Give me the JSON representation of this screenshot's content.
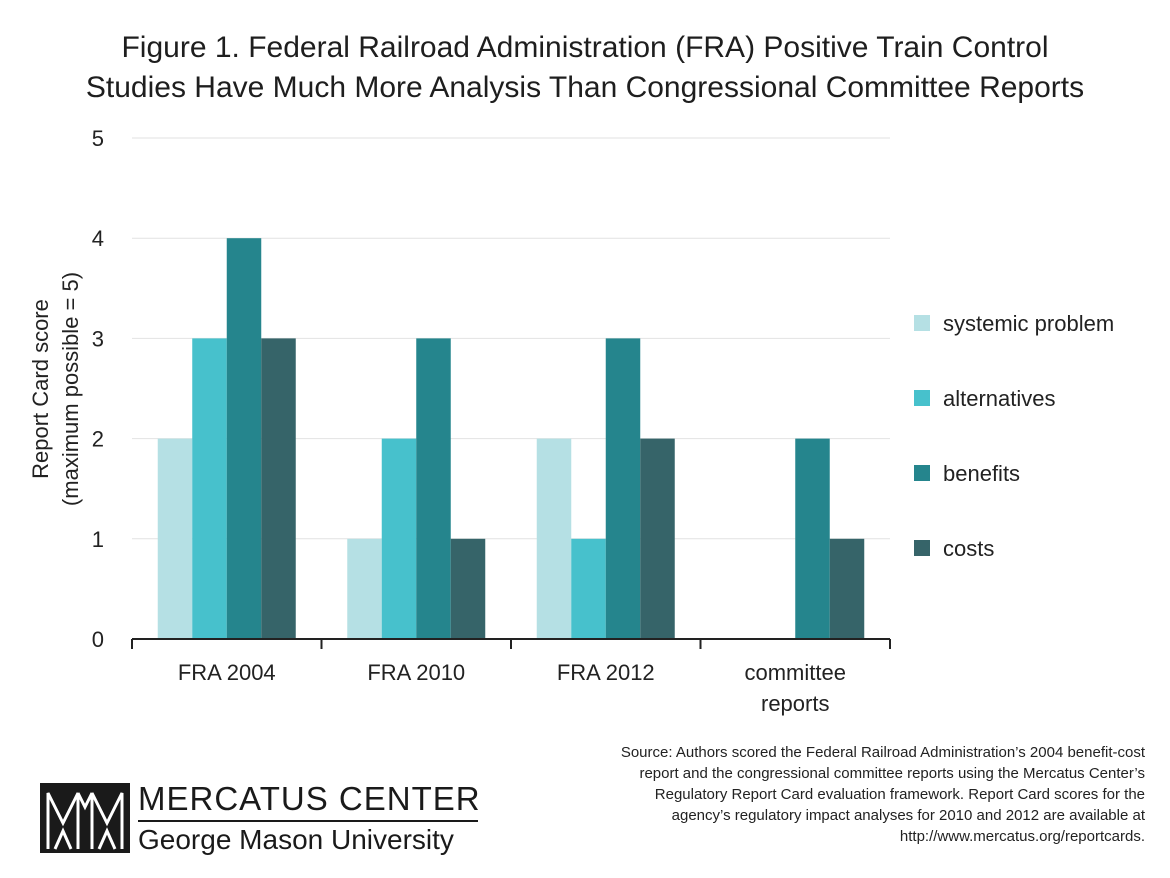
{
  "title": {
    "line1": "Figure 1. Federal Railroad Administration (FRA) Positive Train Control",
    "line2": "Studies Have Much More Analysis Than Congressional Committee Reports"
  },
  "chart_data": {
    "type": "bar",
    "title": "Figure 1. Federal Railroad Administration (FRA) Positive Train Control Studies Have Much More Analysis Than Congressional Committee Reports",
    "ylabel": [
      "Report Card score",
      "(maximum possible = 5)"
    ],
    "xlabel": "",
    "ylim": [
      0,
      5
    ],
    "yticks": [
      "0",
      "1",
      "2",
      "3",
      "4",
      "5"
    ],
    "grid": true,
    "legend_position": "right",
    "categories": [
      [
        "FRA 2004"
      ],
      [
        "FRA 2010"
      ],
      [
        "FRA 2012"
      ],
      [
        "committee",
        "reports"
      ]
    ],
    "series": [
      {
        "name": "systemic problem",
        "color": "#b5e0e4",
        "values": [
          2,
          1,
          2,
          0
        ]
      },
      {
        "name": "alternatives",
        "color": "#47c1cc",
        "values": [
          3,
          2,
          1,
          0
        ]
      },
      {
        "name": "benefits",
        "color": "#25858d",
        "values": [
          4,
          3,
          3,
          2
        ]
      },
      {
        "name": "costs",
        "color": "#366469",
        "values": [
          3,
          1,
          2,
          1
        ]
      }
    ]
  },
  "source": {
    "lines": [
      "Source: Authors scored the Federal Railroad Administration’s 2004 benefit-cost",
      "report and the congressional committee reports using the Mercatus Center’s",
      "Regulatory Report Card evaluation framework. Report Card scores for the",
      "agency’s regulatory impact analyses for 2010 and 2012 are available at",
      "http://www.mercatus.org/reportcards."
    ]
  },
  "logo": {
    "name": "MERCATUS CENTER",
    "subtitle": "George Mason University",
    "icon": "mercatus-arches-icon"
  }
}
